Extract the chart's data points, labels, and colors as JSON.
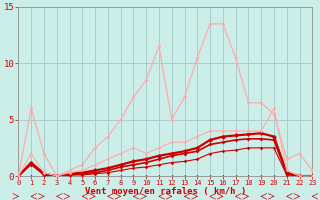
{
  "background_color": "#cceee8",
  "grid_color": "#aacccc",
  "xlabel": "Vent moyen/en rafales ( km/h )",
  "xlabel_color": "#cc0000",
  "ytick_color": "#cc0000",
  "xtick_color": "#cc0000",
  "ylim": [
    0,
    15
  ],
  "xlim": [
    0,
    23
  ],
  "yticks": [
    0,
    5,
    10,
    15
  ],
  "xticks": [
    0,
    1,
    2,
    3,
    4,
    5,
    6,
    7,
    8,
    9,
    10,
    11,
    12,
    13,
    14,
    15,
    16,
    17,
    18,
    19,
    20,
    21,
    22,
    23
  ],
  "series": [
    {
      "x": [
        0,
        1,
        2,
        3,
        4,
        5,
        6,
        7,
        8,
        9,
        10,
        11,
        12,
        13,
        14,
        15,
        16,
        17,
        18,
        19,
        20,
        21,
        22,
        23
      ],
      "y": [
        0,
        0,
        0,
        0,
        0,
        0,
        0,
        0,
        0,
        0,
        0,
        0,
        0,
        0,
        0,
        0,
        0,
        0,
        0,
        0,
        0,
        0,
        0,
        0
      ],
      "color": "#880000",
      "linewidth": 0.7,
      "marker": "D",
      "markersize": 1.5
    },
    {
      "x": [
        0,
        1,
        2,
        3,
        4,
        5,
        6,
        7,
        8,
        9,
        10,
        11,
        12,
        13,
        14,
        15,
        16,
        17,
        18,
        19,
        20,
        21,
        22,
        23
      ],
      "y": [
        0,
        1.0,
        0.1,
        0.0,
        0.1,
        0.1,
        0.2,
        0.3,
        0.5,
        0.7,
        0.8,
        1.0,
        1.2,
        1.3,
        1.5,
        2.0,
        2.2,
        2.3,
        2.5,
        2.5,
        2.5,
        0.1,
        0.0,
        0.0
      ],
      "color": "#cc0000",
      "linewidth": 0.8,
      "marker": "D",
      "markersize": 1.8
    },
    {
      "x": [
        0,
        1,
        2,
        3,
        4,
        5,
        6,
        7,
        8,
        9,
        10,
        11,
        12,
        13,
        14,
        15,
        16,
        17,
        18,
        19,
        20,
        21,
        22,
        23
      ],
      "y": [
        0,
        1.1,
        0.1,
        0.0,
        0.1,
        0.2,
        0.3,
        0.5,
        0.8,
        1.0,
        1.2,
        1.5,
        1.8,
        2.0,
        2.2,
        2.8,
        3.0,
        3.2,
        3.3,
        3.3,
        3.2,
        0.2,
        0.0,
        0.0
      ],
      "color": "#cc0000",
      "linewidth": 1.2,
      "marker": "D",
      "markersize": 2.0
    },
    {
      "x": [
        0,
        1,
        2,
        3,
        4,
        5,
        6,
        7,
        8,
        9,
        10,
        11,
        12,
        13,
        14,
        15,
        16,
        17,
        18,
        19,
        20,
        21,
        22,
        23
      ],
      "y": [
        0,
        1.2,
        0.2,
        0.0,
        0.2,
        0.3,
        0.5,
        0.7,
        1.0,
        1.3,
        1.5,
        1.8,
        2.0,
        2.2,
        2.5,
        3.2,
        3.5,
        3.6,
        3.7,
        3.8,
        3.5,
        0.3,
        0.0,
        0.0
      ],
      "color": "#cc0000",
      "linewidth": 1.6,
      "marker": "D",
      "markersize": 2.5
    },
    {
      "x": [
        0,
        1,
        2,
        3,
        4,
        5,
        6,
        7,
        8,
        9,
        10,
        11,
        12,
        13,
        14,
        15,
        16,
        17,
        18,
        19,
        20,
        21,
        22,
        23
      ],
      "y": [
        0,
        2.0,
        0.3,
        0.0,
        0.3,
        0.5,
        1.0,
        1.5,
        2.0,
        2.5,
        2.0,
        2.5,
        3.0,
        3.0,
        3.5,
        4.0,
        4.0,
        4.0,
        4.0,
        4.0,
        6.0,
        0.5,
        0.0,
        0.0
      ],
      "color": "#ffaaaa",
      "linewidth": 0.8,
      "marker": "D",
      "markersize": 1.8
    },
    {
      "x": [
        0,
        1,
        2,
        3,
        4,
        5,
        6,
        7,
        8,
        9,
        10,
        11,
        12,
        13,
        14,
        15,
        16,
        17,
        18,
        19,
        20,
        21,
        22,
        23
      ],
      "y": [
        0,
        6.0,
        2.0,
        0.0,
        0.5,
        1.0,
        2.5,
        3.5,
        5.0,
        7.0,
        8.5,
        11.5,
        5.0,
        7.0,
        10.5,
        13.5,
        13.5,
        10.5,
        6.5,
        6.5,
        5.5,
        1.5,
        2.0,
        0.5
      ],
      "color": "#ffaaaa",
      "linewidth": 0.9,
      "marker": "D",
      "markersize": 2.0
    }
  ]
}
